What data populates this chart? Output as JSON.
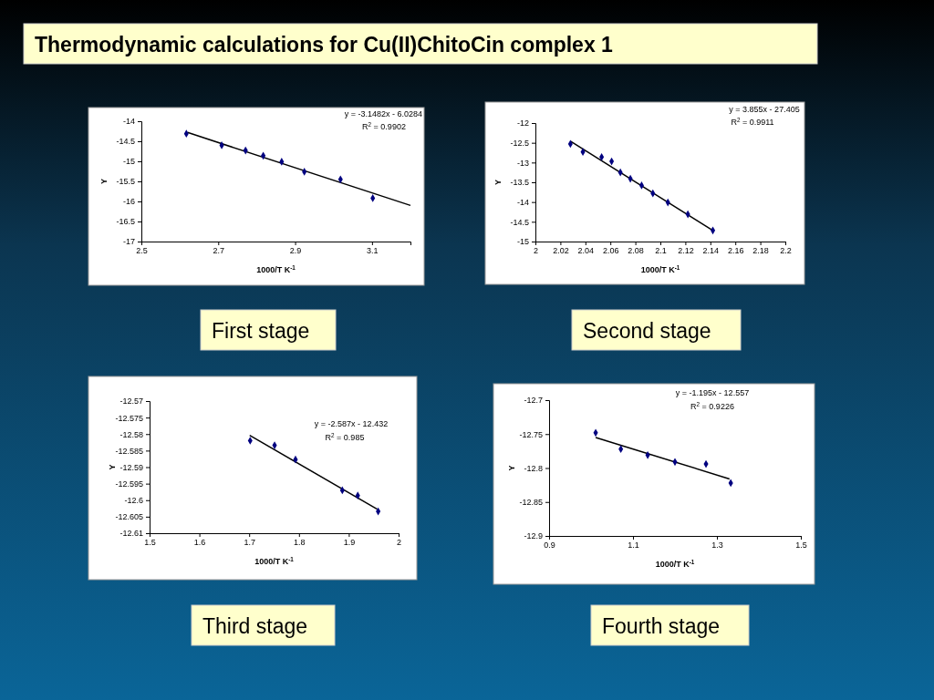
{
  "chart_data": [
    {
      "type": "scatter",
      "title": "Thermodynamic calculations for Cu(II)ChitoCin complex 1",
      "xlabel": "1000/T K$^{-1}$",
      "ylabel": "Y",
      "xlim": [
        2.5,
        3.2
      ],
      "xticks": [
        2.5,
        2.7,
        2.9,
        3.1
      ],
      "ylim": [
        -17,
        -14
      ],
      "yticks": [
        -17,
        -16.5,
        -16,
        -15.5,
        -15,
        -14.5,
        -14
      ],
      "annotations": [
        "y = -3.1482x - 6.0284",
        "R$^{2}$ = 0.9902",
        "First stage"
      ],
      "series": [
        {
          "color": "#000080",
          "marker": "diamond",
          "x": [
            2.617,
            2.709,
            2.771,
            2.817,
            2.865,
            2.924,
            3.018,
            3.102
          ],
          "values": [
            -14.31,
            -14.6,
            -14.73,
            -14.86,
            -15.01,
            -15.26,
            -15.45,
            -15.92
          ]
        },
        {
          "type": "line",
          "color": "#000000",
          "marker": "none",
          "x": [
            2.62,
            3.2
          ],
          "values": [
            -14.28,
            -16.1
          ]
        }
      ]
    },
    {
      "type": "scatter",
      "xlabel": "1000/T K$^{-1}$",
      "ylabel": "Y",
      "xlim": [
        2,
        2.2
      ],
      "xticks": [
        2,
        2.02,
        2.04,
        2.06,
        2.08,
        2.1,
        2.12,
        2.14,
        2.16,
        2.18,
        2.2
      ],
      "ylim": [
        -15,
        -12
      ],
      "yticks": [
        -15,
        -14.5,
        -14,
        -13.5,
        -13,
        -12.5,
        -12
      ],
      "annotations": [
        "y = 3.855x - 27.405",
        "R$^{2}$ = 0.9911",
        "Second stage"
      ],
      "series": [
        {
          "color": "#000080",
          "marker": "diamond",
          "x": [
            2.028,
            2.038,
            2.053,
            2.061,
            2.068,
            2.076,
            2.085,
            2.094,
            2.106,
            2.122,
            2.142
          ],
          "values": [
            -12.53,
            -12.73,
            -12.86,
            -12.97,
            -13.25,
            -13.41,
            -13.58,
            -13.78,
            -14.01,
            -14.31,
            -14.72
          ]
        },
        {
          "type": "line",
          "color": "#000000",
          "marker": "none",
          "x": [
            2.028,
            2.142
          ],
          "values": [
            -12.46,
            -14.72
          ]
        }
      ]
    },
    {
      "type": "scatter",
      "xlabel": "1000/T K$^{-1}$",
      "ylabel": "Y",
      "xlim": [
        1.5,
        2
      ],
      "xticks": [
        1.5,
        1.6,
        1.7,
        1.8,
        1.9,
        2
      ],
      "ylim": [
        -12.61,
        -12.57
      ],
      "yticks": [
        -12.61,
        -12.605,
        -12.6,
        -12.595,
        -12.59,
        -12.585,
        -12.58,
        -12.575,
        -12.57
      ],
      "annotations": [
        "y = -2.587x - 12.432",
        "R$^{2}$ = 0.985",
        "Third stage"
      ],
      "series": [
        {
          "color": "#000080",
          "marker": "diamond",
          "x": [
            1.702,
            1.751,
            1.793,
            1.887,
            1.918,
            1.959
          ],
          "values": [
            -12.582,
            -12.5834,
            -12.5877,
            -12.597,
            -12.5986,
            -12.6034
          ]
        },
        {
          "type": "line",
          "color": "#000000",
          "marker": "none",
          "x": [
            1.701,
            1.957
          ],
          "values": [
            -12.5804,
            -12.6027
          ]
        }
      ]
    },
    {
      "type": "scatter",
      "xlabel": "1000/T K$^{-1}$",
      "ylabel": "Y",
      "xlim": [
        0.9,
        1.5
      ],
      "xticks": [
        0.9,
        1.1,
        1.3,
        1.5
      ],
      "ylim": [
        -12.9,
        -12.7
      ],
      "yticks": [
        -12.9,
        -12.85,
        -12.8,
        -12.75,
        -12.7
      ],
      "annotations": [
        "y = -1.195x - 12.557",
        "R$^{2}$ = 0.9226",
        "Fourth stage"
      ],
      "series": [
        {
          "color": "#000080",
          "marker": "diamond",
          "x": [
            1.011,
            1.071,
            1.135,
            1.2,
            1.274,
            1.333
          ],
          "values": [
            -12.748,
            -12.772,
            -12.781,
            -12.791,
            -12.794,
            -12.822
          ]
        },
        {
          "type": "line",
          "color": "#000000",
          "marker": "none",
          "x": [
            1.011,
            1.33
          ],
          "values": [
            -12.755,
            -12.816
          ]
        }
      ]
    }
  ]
}
